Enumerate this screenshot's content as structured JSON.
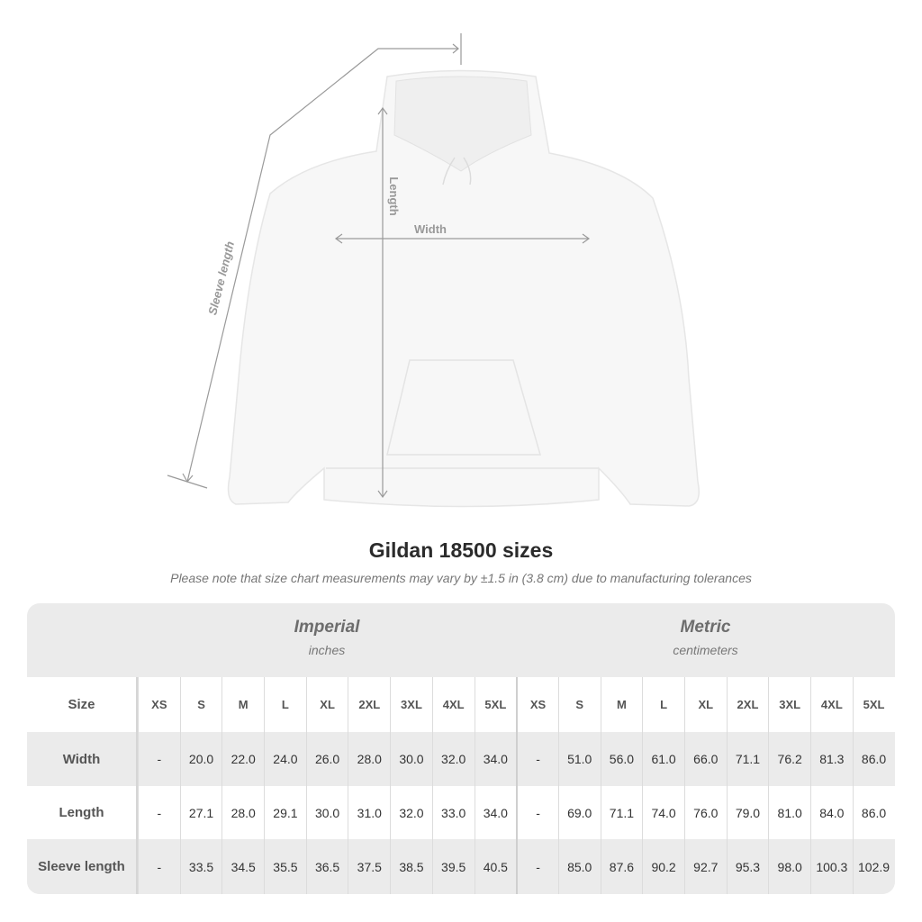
{
  "diagram": {
    "labels": {
      "sleeve": "Sleeve length",
      "length": "Length",
      "width": "Width"
    }
  },
  "title": "Gildan 18500 sizes",
  "note": "Please note that size chart measurements may vary by ±1.5 in (3.8 cm) due to manufacturing tolerances",
  "table": {
    "imperial": {
      "title": "Imperial",
      "unit": "inches"
    },
    "metric": {
      "title": "Metric",
      "unit": "centimeters"
    },
    "size_label": "Size",
    "sizes": [
      "XS",
      "S",
      "M",
      "L",
      "XL",
      "2XL",
      "3XL",
      "4XL",
      "5XL"
    ],
    "rows": [
      {
        "label": "Width",
        "imperial": [
          "-",
          "20.0",
          "22.0",
          "24.0",
          "26.0",
          "28.0",
          "30.0",
          "32.0",
          "34.0"
        ],
        "metric": [
          "-",
          "51.0",
          "56.0",
          "61.0",
          "66.0",
          "71.1",
          "76.2",
          "81.3",
          "86.0"
        ]
      },
      {
        "label": "Length",
        "imperial": [
          "-",
          "27.1",
          "28.0",
          "29.1",
          "30.0",
          "31.0",
          "32.0",
          "33.0",
          "34.0"
        ],
        "metric": [
          "-",
          "69.0",
          "71.1",
          "74.0",
          "76.0",
          "79.0",
          "81.0",
          "84.0",
          "86.0"
        ]
      },
      {
        "label": "Sleeve length",
        "imperial": [
          "-",
          "33.5",
          "34.5",
          "35.5",
          "36.5",
          "37.5",
          "38.5",
          "39.5",
          "40.5"
        ],
        "metric": [
          "-",
          "85.0",
          "87.6",
          "90.2",
          "92.7",
          "95.3",
          "98.0",
          "100.3",
          "102.9"
        ]
      }
    ]
  }
}
